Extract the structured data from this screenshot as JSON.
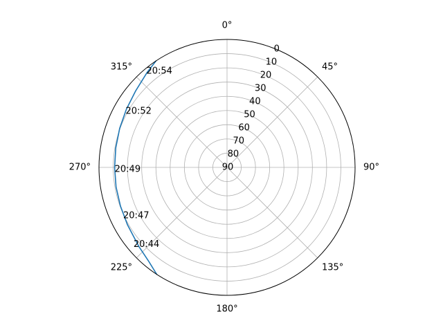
{
  "chart_data": {
    "type": "line",
    "projection": "polar",
    "theta_zero_location": "N",
    "theta_direction": "clockwise",
    "radial_axis_inverted": true,
    "title": "",
    "grid": true,
    "theta_ticks": [
      {
        "value": 0,
        "label": "0°"
      },
      {
        "value": 45,
        "label": "45°"
      },
      {
        "value": 90,
        "label": "90°"
      },
      {
        "value": 135,
        "label": "135°"
      },
      {
        "value": 180,
        "label": "180°"
      },
      {
        "value": 225,
        "label": "225°"
      },
      {
        "value": 270,
        "label": "270°"
      },
      {
        "value": 315,
        "label": "315°"
      }
    ],
    "radial_ticks": [
      {
        "value": 0,
        "label": "0"
      },
      {
        "value": 10,
        "label": "10"
      },
      {
        "value": 20,
        "label": "20"
      },
      {
        "value": 30,
        "label": "30"
      },
      {
        "value": 40,
        "label": "40"
      },
      {
        "value": 50,
        "label": "50"
      },
      {
        "value": 60,
        "label": "60"
      },
      {
        "value": 70,
        "label": "70"
      },
      {
        "value": 80,
        "label": "80"
      },
      {
        "value": 90,
        "label": "90"
      }
    ],
    "radial_range": [
      0,
      90
    ],
    "series": [
      {
        "color": "#1f77b4",
        "points": [
          {
            "azimuth": 213.3,
            "elevation": 0
          },
          {
            "azimuth": 220.0,
            "elevation": 4.1
          },
          {
            "azimuth": 228.0,
            "elevation": 6.7
          },
          {
            "azimuth": 240.0,
            "elevation": 9.2
          },
          {
            "azimuth": 250.0,
            "elevation": 10.3
          },
          {
            "azimuth": 260.0,
            "elevation": 10.8
          },
          {
            "azimuth": 270.0,
            "elevation": 11.0
          },
          {
            "azimuth": 280.0,
            "elevation": 10.6
          },
          {
            "azimuth": 290.0,
            "elevation": 9.7
          },
          {
            "azimuth": 300.0,
            "elevation": 8.3
          },
          {
            "azimuth": 310.0,
            "elevation": 6.2
          },
          {
            "azimuth": 320.0,
            "elevation": 2.7
          },
          {
            "azimuth": 326.3,
            "elevation": 0
          }
        ]
      }
    ],
    "annotations": [
      {
        "text": "20:44",
        "azimuth": 230.5,
        "elevation": 4.8
      },
      {
        "text": "20:47",
        "azimuth": 245.0,
        "elevation": 9.5
      },
      {
        "text": "20:49",
        "azimuth": 269.0,
        "elevation": 11.0
      },
      {
        "text": "20:52",
        "azimuth": 299.0,
        "elevation": 8.5
      },
      {
        "text": "20:54",
        "azimuth": 320.0,
        "elevation": 1.8
      }
    ]
  }
}
